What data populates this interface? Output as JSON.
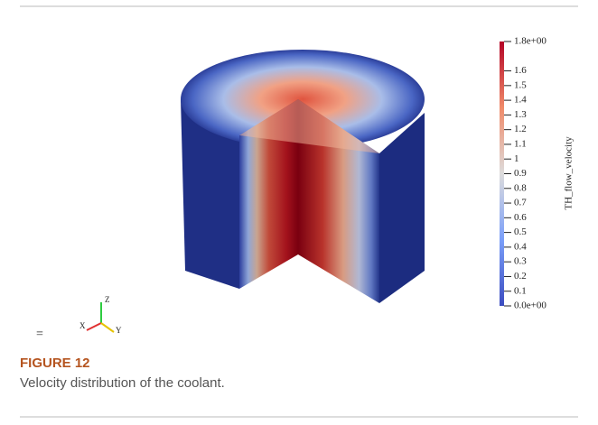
{
  "figure": {
    "colorbar": {
      "title": "TH_flow_velocity",
      "clim": [
        0,
        1.8
      ],
      "ticks": [
        {
          "value": 1.8,
          "label": "1.8e+00"
        },
        1.6,
        1.5,
        1.4,
        1.3,
        1.2,
        1.1,
        1,
        0.9,
        0.8,
        0.7,
        0.6,
        0.5,
        0.4,
        0.3,
        0.2,
        0.1,
        {
          "value": 0,
          "label": "0.0e+00"
        }
      ]
    },
    "axes_triad": {
      "x": "X",
      "y": "Y",
      "z": "Z"
    },
    "mark": "="
  },
  "caption": {
    "label": "FIGURE 12",
    "text": "Velocity distribution of the coolant."
  }
}
